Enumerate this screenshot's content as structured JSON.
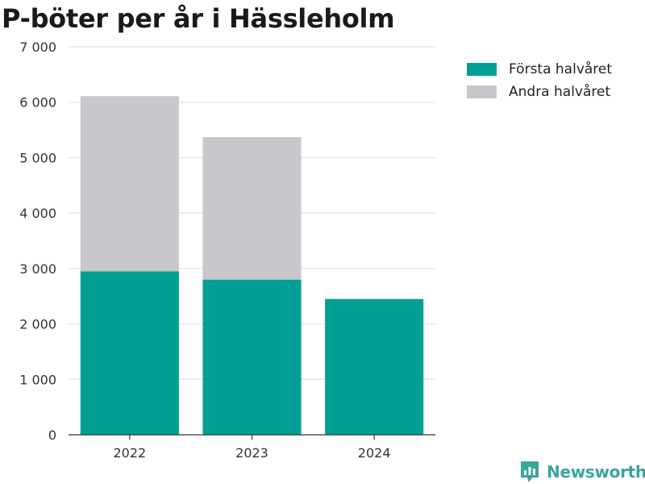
{
  "title": "P-böter per år i Hässleholm",
  "chart_data": {
    "type": "bar",
    "stacked": true,
    "categories": [
      "2022",
      "2023",
      "2024"
    ],
    "series": [
      {
        "name": "Första halvåret",
        "values": [
          2950,
          2800,
          2450
        ],
        "color": "#00a096"
      },
      {
        "name": "Andra halvåret",
        "values": [
          3160,
          2570,
          0
        ],
        "color": "#c7c7cc"
      }
    ],
    "ylim": [
      0,
      7000
    ],
    "yticks": [
      0,
      1000,
      2000,
      3000,
      4000,
      5000,
      6000,
      7000
    ],
    "ytick_labels": [
      "0",
      "1 000",
      "2 000",
      "3 000",
      "4 000",
      "5 000",
      "6 000",
      "7 000"
    ],
    "grid": true,
    "legend_position": "top-right"
  },
  "brand": {
    "name": "Newsworthy",
    "color": "#3aa59a",
    "icon": "newsworthy-logo-icon"
  }
}
